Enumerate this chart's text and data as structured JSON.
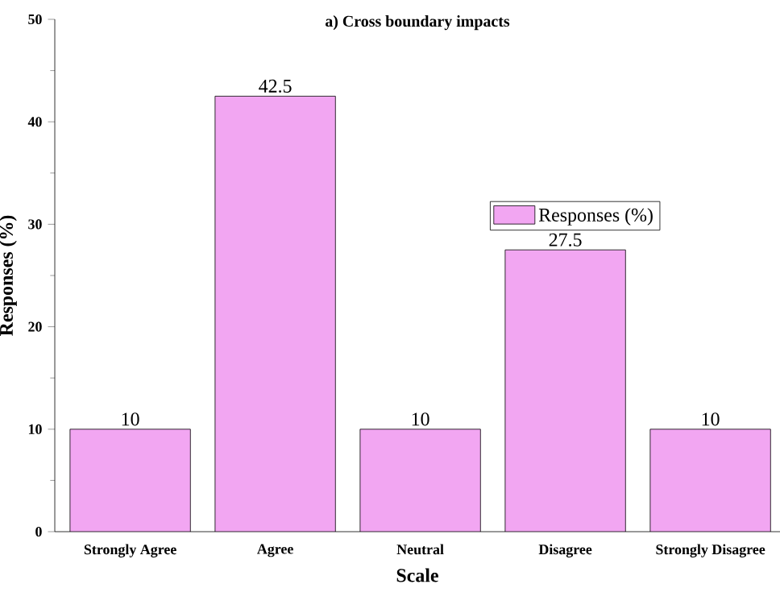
{
  "chart_data": {
    "type": "bar",
    "title": "a) Cross boundary impacts",
    "xlabel": "Scale",
    "ylabel": "Responses (%)",
    "categories": [
      "Strongly Agree",
      "Agree",
      "Neutral",
      "Disagree",
      "Strongly Disagree"
    ],
    "series": [
      {
        "name": "Responses (%)",
        "color": "#f2a6f2",
        "values": [
          10,
          42.5,
          10,
          27.5,
          10
        ]
      }
    ],
    "ylim": [
      0,
      50
    ],
    "yticks": [
      0,
      10,
      20,
      30,
      40,
      50
    ],
    "data_labels": true,
    "legend": "right"
  }
}
